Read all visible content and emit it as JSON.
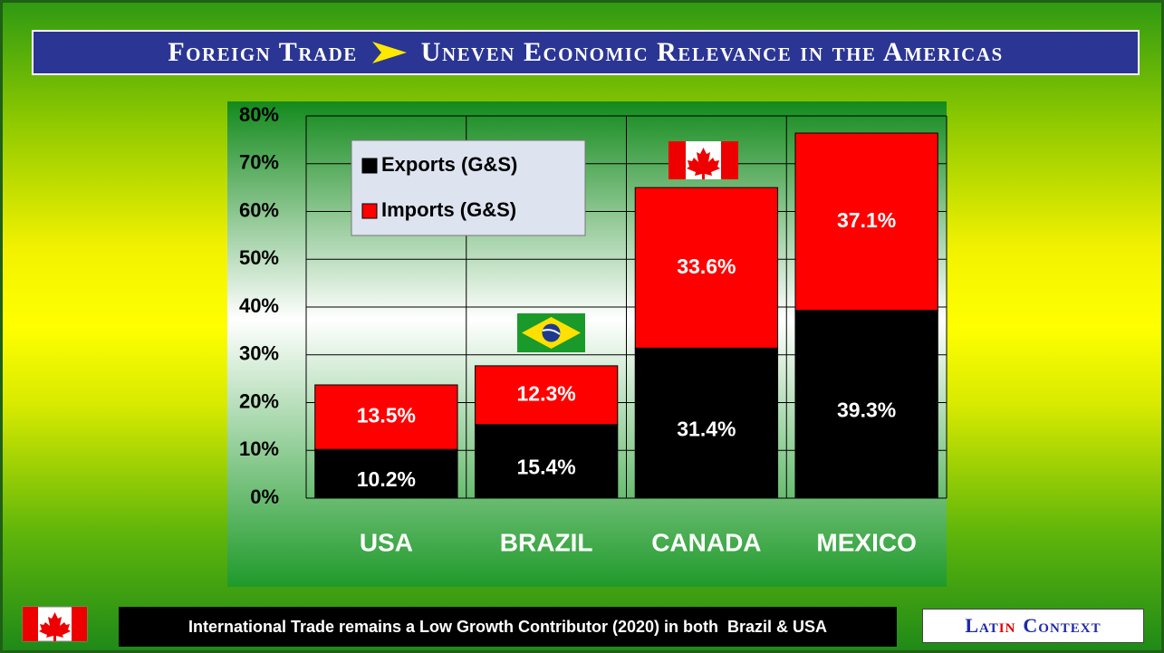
{
  "header": {
    "title_left": "Foreign Trade",
    "title_right": "Uneven Economic Relevance in the Americas"
  },
  "chart_data": {
    "type": "stacked_bar",
    "categories": [
      "USA",
      "BRAZIL",
      "CANADA",
      "MEXICO"
    ],
    "series": [
      {
        "name": "Exports (G&S)",
        "color": "#000000",
        "values": [
          10.2,
          15.4,
          31.4,
          39.3
        ],
        "value_labels": [
          "10.2%",
          "15.4%",
          "31.4%",
          "39.3%"
        ]
      },
      {
        "name": "Imports (G&S)",
        "color": "#ff0000",
        "values": [
          13.5,
          12.3,
          33.6,
          37.1
        ],
        "value_labels": [
          "13.5%",
          "12.3%",
          "33.6%",
          "37.1%"
        ]
      }
    ],
    "ylim": [
      0,
      80
    ],
    "yticks": [
      {
        "value": 0,
        "label": "0%"
      },
      {
        "value": 10,
        "label": "10%"
      },
      {
        "value": 20,
        "label": "20%"
      },
      {
        "value": 30,
        "label": "30%"
      },
      {
        "value": 40,
        "label": "40%"
      },
      {
        "value": 50,
        "label": "50%"
      },
      {
        "value": 60,
        "label": "60%"
      },
      {
        "value": 70,
        "label": "70%"
      },
      {
        "value": 80,
        "label": "80%"
      }
    ],
    "grid": true,
    "legend": "upper left"
  },
  "footer": {
    "note": "International Trade remains a Low Growth Contributor (2020) in both  Brazil & USA",
    "badge": [
      "Lat",
      "in",
      "Context"
    ]
  }
}
